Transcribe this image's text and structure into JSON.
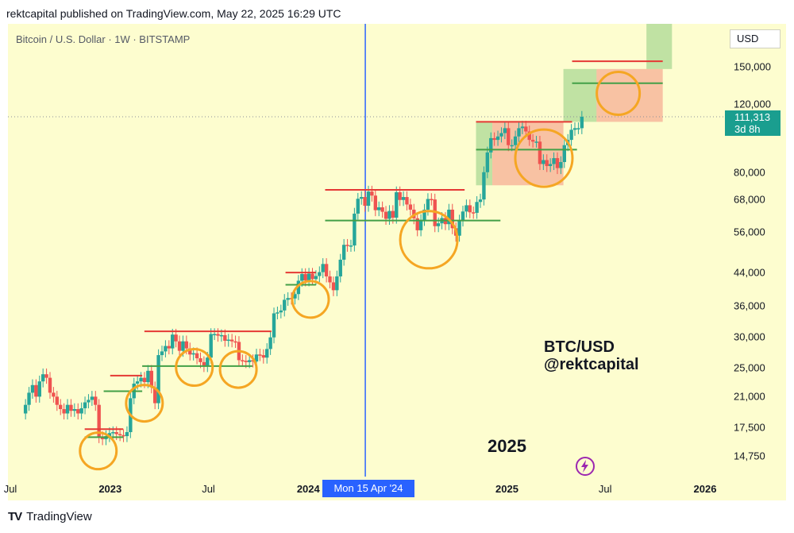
{
  "header": {
    "text": "rektcapital published on TradingView.com, May 22, 2025 16:29 UTC"
  },
  "symbol_line": "Bitcoin / U.S. Dollar · 1W · BITSTAMP",
  "currency": "USD",
  "current_price": {
    "value": "111,313",
    "countdown": "3d 8h"
  },
  "crosshair_label": "Mon 15 Apr '24",
  "footer": {
    "logo": "TV",
    "brand": "TradingView"
  },
  "annotation_pair": "BTC/USD",
  "annotation_handle": "@rektcapital",
  "annotation_year": "2025",
  "icon_names": {
    "brand": "tradingview-logo-icon",
    "spark": "lightning-badge-icon"
  },
  "colors": {
    "background": "#fdfdcf",
    "up": "#26a69a",
    "down": "#ef5350",
    "resistance": "#e53935",
    "support": "#43a047",
    "circle": "#f5a623",
    "crosshair": "#2962ff"
  },
  "chart_data": {
    "type": "candlestick",
    "title": "Bitcoin / U.S. Dollar · 1W · BITSTAMP",
    "y_scale": "log",
    "y_ticks": [
      14750,
      17500,
      21000,
      25000,
      30000,
      36000,
      44000,
      56000,
      68000,
      80000,
      120000,
      150000
    ],
    "y_tick_labels": [
      "14,750",
      "17,500",
      "21,000",
      "25,000",
      "30,000",
      "36,000",
      "44,000",
      "56,000",
      "68,000",
      "80,000",
      "120,000",
      "150,000"
    ],
    "x_tick_labels": [
      {
        "label": "Jul",
        "date": "2022-07-01",
        "bold": false
      },
      {
        "label": "2023",
        "date": "2023-01-01",
        "bold": true
      },
      {
        "label": "Jul",
        "date": "2023-07-01",
        "bold": false
      },
      {
        "label": "2024",
        "date": "2024-01-01",
        "bold": true
      },
      {
        "label": "l",
        "date": "2024-07-01",
        "bold": false
      },
      {
        "label": "2025",
        "date": "2025-01-01",
        "bold": true
      },
      {
        "label": "Jul",
        "date": "2025-07-01",
        "bold": false
      },
      {
        "label": "2026",
        "date": "2026-01-01",
        "bold": true
      }
    ],
    "x_range": [
      "2022-07-01",
      "2026-01-01"
    ],
    "crosshair_date": "2024-04-15",
    "current_price": 111313,
    "series": [
      {
        "segment": "2022-07 to 2022-11",
        "closes": [
          20000,
          21500,
          22500,
          21000,
          23000,
          24000,
          23500,
          21500,
          21000,
          20000,
          19500,
          19000,
          20000,
          19300,
          19500,
          19000,
          19600,
          20300,
          20600,
          21000,
          20000,
          16500,
          16300,
          16600,
          16900
        ]
      },
      {
        "segment": "2022-12 to 2023-03",
        "closes": [
          17000,
          16800,
          16700,
          16600,
          17000,
          20800,
          22700,
          23000,
          23500,
          22900,
          24500,
          22200,
          20200,
          26900,
          27500,
          28400
        ]
      },
      {
        "segment": "2023-04 to 2023-10",
        "closes": [
          28000,
          30400,
          29200,
          27600,
          29200,
          28000,
          27000,
          27200,
          26400,
          25800,
          25200,
          26500,
          30500,
          30500,
          30200,
          30300,
          29300,
          29500,
          29200,
          29100,
          26100,
          26000,
          25800,
          26100,
          25900,
          27000,
          26900,
          26500,
          27900,
          29900
        ]
      },
      {
        "segment": "2023-10 to 2024-03",
        "closes": [
          34500,
          34700,
          35100,
          37400,
          37800,
          37700,
          38700,
          41900,
          43600,
          42000,
          43700,
          42300,
          43100,
          44100,
          46300,
          43000,
          41500,
          39600,
          43000,
          47500,
          51900,
          51600,
          51700,
          62500,
          68300,
          69000,
          65500,
          71300
        ]
      },
      {
        "segment": "2024-04 to 2024-10",
        "closes": [
          69600,
          63800,
          64900,
          63200,
          60600,
          63500,
          61000,
          71000,
          67800,
          69000,
          66000,
          64000,
          60800,
          56600,
          60200,
          64000,
          68200,
          68000,
          58000,
          59000,
          60900,
          58700,
          64000,
          57300,
          54800,
          60000,
          63300,
          65700,
          63000,
          62800,
          67000,
          68000
        ]
      },
      {
        "segment": "2024-11 to 2025-05",
        "closes": [
          80000,
          90000,
          98000,
          97000,
          99000,
          101000,
          104000,
          94000,
          94000,
          99000,
          104000,
          105000,
          102000,
          97000,
          96000,
          96000,
          84000,
          86000,
          83000,
          84000,
          87000,
          82000,
          85000,
          94000,
          97000,
          103000,
          104000,
          104000,
          111313
        ]
      }
    ],
    "zones": [
      {
        "kind": "resistance",
        "price": 17300,
        "from": "2022-11-15",
        "to": "2023-01-25"
      },
      {
        "kind": "support",
        "price": 16500,
        "from": "2022-11-15",
        "to": "2023-01-25"
      },
      {
        "kind": "resistance",
        "price": 23800,
        "from": "2023-01-01",
        "to": "2023-03-01"
      },
      {
        "kind": "support",
        "price": 21700,
        "from": "2022-12-20",
        "to": "2023-03-01"
      },
      {
        "kind": "resistance",
        "price": 31000,
        "from": "2023-03-05",
        "to": "2023-10-25"
      },
      {
        "kind": "support",
        "price": 25200,
        "from": "2023-03-01",
        "to": "2023-09-20"
      },
      {
        "kind": "resistance",
        "price": 44000,
        "from": "2023-11-20",
        "to": "2024-01-15"
      },
      {
        "kind": "support",
        "price": 40900,
        "from": "2023-11-20",
        "to": "2024-01-15"
      },
      {
        "kind": "resistance",
        "price": 72000,
        "from": "2024-02-01",
        "to": "2024-10-15"
      },
      {
        "kind": "support",
        "price": 60000,
        "from": "2024-02-01",
        "to": "2024-12-20"
      },
      {
        "kind": "resistance",
        "price": 108000,
        "from": "2024-11-05",
        "to": "2025-05-01"
      },
      {
        "kind": "support",
        "price": 91500,
        "from": "2024-11-05",
        "to": "2025-05-10"
      },
      {
        "kind": "resistance",
        "price": 155000,
        "from": "2025-05-01",
        "to": "2025-10-15"
      },
      {
        "kind": "support",
        "price": 136000,
        "from": "2025-05-01",
        "to": "2025-10-15"
      }
    ],
    "boxes": [
      {
        "kind": "green",
        "from": "2024-11-05",
        "to": "2024-12-05",
        "low": 74000,
        "high": 108000
      },
      {
        "kind": "red",
        "from": "2024-12-05",
        "to": "2025-04-15",
        "low": 74000,
        "high": 108000
      },
      {
        "kind": "green",
        "from": "2025-04-15",
        "to": "2025-06-15",
        "low": 108000,
        "high": 148000
      },
      {
        "kind": "red",
        "from": "2025-06-15",
        "to": "2025-10-15",
        "low": 108000,
        "high": 148000
      },
      {
        "kind": "green",
        "from": "2025-09-15",
        "to": "2025-11-01",
        "low": 148000,
        "high": 210000
      }
    ],
    "circles": [
      {
        "date": "2022-12-10",
        "price": 15200,
        "radius": 23
      },
      {
        "date": "2023-03-05",
        "price": 20200,
        "radius": 23
      },
      {
        "date": "2023-06-05",
        "price": 25000,
        "radius": 23
      },
      {
        "date": "2023-08-25",
        "price": 24700,
        "radius": 23
      },
      {
        "date": "2024-01-05",
        "price": 37500,
        "radius": 23
      },
      {
        "date": "2024-08-10",
        "price": 53500,
        "radius": 36
      },
      {
        "date": "2025-03-10",
        "price": 87000,
        "radius": 36
      },
      {
        "date": "2025-07-25",
        "price": 128000,
        "radius": 27
      }
    ]
  }
}
